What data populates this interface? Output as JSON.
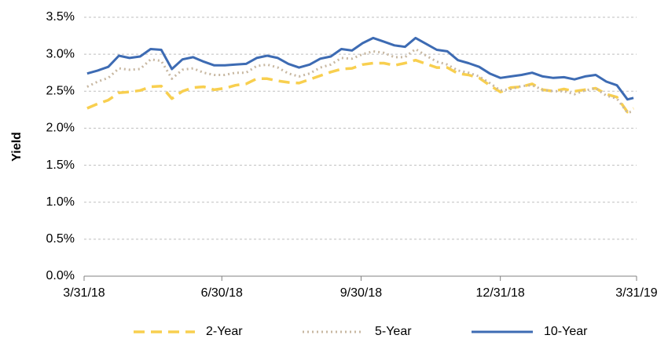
{
  "chart_data": {
    "type": "line",
    "y_label": "Yield",
    "x": [
      "2018-04-02",
      "2018-04-09",
      "2018-04-16",
      "2018-04-23",
      "2018-04-30",
      "2018-05-07",
      "2018-05-14",
      "2018-05-21",
      "2018-05-28",
      "2018-06-04",
      "2018-06-11",
      "2018-06-18",
      "2018-06-25",
      "2018-07-02",
      "2018-07-09",
      "2018-07-16",
      "2018-07-23",
      "2018-07-30",
      "2018-08-06",
      "2018-08-13",
      "2018-08-20",
      "2018-08-27",
      "2018-09-03",
      "2018-09-10",
      "2018-09-17",
      "2018-09-24",
      "2018-10-01",
      "2018-10-08",
      "2018-10-15",
      "2018-10-22",
      "2018-10-29",
      "2018-11-05",
      "2018-11-12",
      "2018-11-19",
      "2018-11-26",
      "2018-12-03",
      "2018-12-10",
      "2018-12-17",
      "2018-12-24",
      "2018-12-31",
      "2019-01-07",
      "2019-01-14",
      "2019-01-21",
      "2019-01-28",
      "2019-02-04",
      "2019-02-11",
      "2019-02-18",
      "2019-02-25",
      "2019-03-04",
      "2019-03-11",
      "2019-03-18",
      "2019-03-25",
      "2019-03-29"
    ],
    "series": [
      {
        "name": "2-Year",
        "color": "#f8cf4f",
        "line_style": "dashed",
        "values": [
          2.27,
          2.33,
          2.38,
          2.48,
          2.49,
          2.51,
          2.56,
          2.57,
          2.4,
          2.5,
          2.55,
          2.56,
          2.52,
          2.54,
          2.58,
          2.6,
          2.67,
          2.67,
          2.64,
          2.62,
          2.61,
          2.66,
          2.71,
          2.76,
          2.8,
          2.81,
          2.86,
          2.88,
          2.88,
          2.85,
          2.88,
          2.92,
          2.87,
          2.82,
          2.82,
          2.74,
          2.72,
          2.68,
          2.58,
          2.49,
          2.55,
          2.56,
          2.6,
          2.52,
          2.5,
          2.53,
          2.5,
          2.52,
          2.54,
          2.46,
          2.42,
          2.22,
          2.27
        ]
      },
      {
        "name": "5-Year",
        "color": "#c8b8a2",
        "line_style": "dotted",
        "values": [
          2.56,
          2.63,
          2.68,
          2.81,
          2.79,
          2.8,
          2.93,
          2.91,
          2.67,
          2.79,
          2.81,
          2.75,
          2.72,
          2.72,
          2.75,
          2.75,
          2.84,
          2.86,
          2.82,
          2.74,
          2.7,
          2.74,
          2.82,
          2.86,
          2.95,
          2.94,
          3.0,
          3.04,
          3.02,
          2.96,
          2.96,
          3.07,
          2.98,
          2.9,
          2.86,
          2.78,
          2.75,
          2.7,
          2.61,
          2.51,
          2.53,
          2.57,
          2.58,
          2.52,
          2.5,
          2.5,
          2.46,
          2.51,
          2.54,
          2.44,
          2.4,
          2.21,
          2.23
        ]
      },
      {
        "name": "10-Year",
        "color": "#3d6bb3",
        "line_style": "solid",
        "values": [
          2.74,
          2.78,
          2.83,
          2.98,
          2.95,
          2.97,
          3.07,
          3.06,
          2.8,
          2.93,
          2.96,
          2.9,
          2.85,
          2.85,
          2.86,
          2.87,
          2.95,
          2.98,
          2.95,
          2.87,
          2.82,
          2.86,
          2.94,
          2.97,
          3.07,
          3.05,
          3.15,
          3.22,
          3.17,
          3.12,
          3.1,
          3.22,
          3.14,
          3.06,
          3.04,
          2.92,
          2.88,
          2.83,
          2.74,
          2.68,
          2.7,
          2.72,
          2.75,
          2.7,
          2.68,
          2.69,
          2.66,
          2.7,
          2.72,
          2.63,
          2.58,
          2.39,
          2.41
        ]
      }
    ],
    "xlim": [
      "2018-03-31",
      "2019-03-31"
    ],
    "xticks": [
      {
        "value": "2018-03-31",
        "label": "3/31/18"
      },
      {
        "value": "2018-06-30",
        "label": "6/30/18"
      },
      {
        "value": "2018-09-30",
        "label": "9/30/18"
      },
      {
        "value": "2018-12-31",
        "label": "12/31/18"
      },
      {
        "value": "2019-03-31",
        "label": "3/31/19"
      }
    ],
    "ylim": [
      0,
      3.5
    ],
    "yticks": [
      {
        "value": 0,
        "label": "0.0%"
      },
      {
        "value": 0.5,
        "label": "0.5%"
      },
      {
        "value": 1,
        "label": "1.0%"
      },
      {
        "value": 1.5,
        "label": "1.5%"
      },
      {
        "value": 2,
        "label": "2.0%"
      },
      {
        "value": 2.5,
        "label": "2.5%"
      },
      {
        "value": 3,
        "label": "3.0%"
      },
      {
        "value": 3.5,
        "label": "3.5%"
      }
    ],
    "grid": true,
    "legend": "bottom"
  }
}
